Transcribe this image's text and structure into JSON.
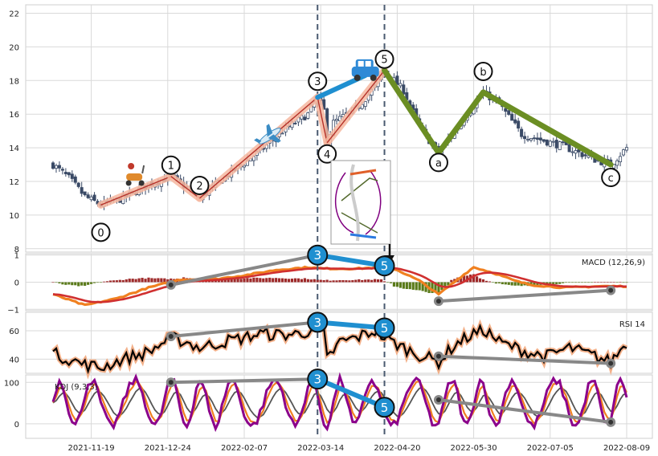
{
  "colors": {
    "candle": "#3a4a66",
    "wave_fill": "#f6b8a0",
    "wave_line": "#b5322a",
    "correction": "#6b8e23",
    "blue_segment": "#1f8fd0",
    "macd": "#f08020",
    "signal": "#d03030",
    "hist_pos": "#9e2a2a",
    "hist_neg": "#5a7a1a",
    "rsi": "#000000",
    "rsi_glow": "#f3b089",
    "k_line": "#f08020",
    "d_line": "#555555",
    "j_line": "#8b008b",
    "divergence": "#888888",
    "vline": "#4a5a70"
  },
  "icons": [
    "scooter-icon",
    "airplane-icon",
    "car-icon",
    "down-arrow-icon"
  ],
  "chart_data": [
    {
      "type": "candlestick",
      "panel": "price",
      "ylim": [
        7.8,
        22.5
      ],
      "yticks": [
        8,
        10,
        12,
        14,
        16,
        18,
        20,
        22
      ],
      "x_ticks": [
        "2021-11-19",
        "2021-12-24",
        "2022-02-07",
        "2022-03-14",
        "2022-04-20",
        "2022-05-30",
        "2022-07-05",
        "2022-08-09"
      ],
      "close_anchors": [
        [
          0,
          13.0
        ],
        [
          5,
          12.2
        ],
        [
          10,
          11.1
        ],
        [
          15,
          10.6
        ],
        [
          22,
          11.0
        ],
        [
          30,
          11.8
        ],
        [
          37,
          12.3
        ],
        [
          42,
          11.6
        ],
        [
          46,
          11.0
        ],
        [
          55,
          12.4
        ],
        [
          65,
          13.8
        ],
        [
          72,
          15.0
        ],
        [
          80,
          16.0
        ],
        [
          83,
          17.0
        ],
        [
          85,
          16.2
        ],
        [
          86,
          14.3
        ],
        [
          88,
          15.5
        ],
        [
          95,
          16.3
        ],
        [
          101,
          17.6
        ],
        [
          104,
          18.6
        ],
        [
          110,
          17.4
        ],
        [
          115,
          15.2
        ],
        [
          121,
          13.7
        ],
        [
          128,
          15.5
        ],
        [
          135,
          17.3
        ],
        [
          140,
          16.6
        ],
        [
          147,
          14.8
        ],
        [
          160,
          14.1
        ],
        [
          170,
          13.3
        ],
        [
          175,
          13.0
        ],
        [
          180,
          14.0
        ]
      ],
      "elliott_waves": [
        {
          "label": "0",
          "day": 15,
          "price": 10.6
        },
        {
          "label": "1",
          "day": 37,
          "price": 12.3
        },
        {
          "label": "2",
          "day": 46,
          "price": 11.0
        },
        {
          "label": "3",
          "day": 83,
          "price": 17.0
        },
        {
          "label": "4",
          "day": 86,
          "price": 14.3
        },
        {
          "label": "5",
          "day": 104,
          "price": 18.6
        },
        {
          "label": "a",
          "day": 121,
          "price": 13.7
        },
        {
          "label": "b",
          "day": 135,
          "price": 17.3
        },
        {
          "label": "c",
          "day": 175,
          "price": 13.0
        }
      ]
    },
    {
      "type": "line",
      "panel": "macd",
      "label": "MACD (12,26,9)",
      "ylim": [
        -1.05,
        1.05
      ],
      "yticks": [
        -1,
        0,
        1
      ],
      "macd_anchors": [
        [
          0,
          -0.45
        ],
        [
          10,
          -0.85
        ],
        [
          20,
          -0.6
        ],
        [
          30,
          -0.2
        ],
        [
          40,
          0.1
        ],
        [
          50,
          0.1
        ],
        [
          60,
          0.25
        ],
        [
          70,
          0.45
        ],
        [
          80,
          0.55
        ],
        [
          85,
          0.5
        ],
        [
          95,
          0.5
        ],
        [
          104,
          0.55
        ],
        [
          108,
          0.45
        ],
        [
          115,
          0.05
        ],
        [
          121,
          -0.45
        ],
        [
          128,
          0.2
        ],
        [
          132,
          0.55
        ],
        [
          138,
          0.35
        ],
        [
          145,
          0.05
        ],
        [
          150,
          -0.1
        ],
        [
          160,
          -0.2
        ],
        [
          172,
          -0.15
        ],
        [
          180,
          -0.15
        ]
      ],
      "divergence_points": [
        {
          "day": 37,
          "value": -0.1,
          "mark": "dot"
        },
        {
          "day": 83,
          "value": 1.0,
          "mark": "3"
        },
        {
          "day": 104,
          "value": 0.6,
          "mark": "5"
        },
        {
          "day": 121,
          "value": -0.7,
          "mark": "dot"
        },
        {
          "day": 175,
          "value": -0.3,
          "mark": "dot"
        }
      ]
    },
    {
      "type": "line",
      "panel": "rsi",
      "label": "RSI 14",
      "ylim": [
        30,
        73
      ],
      "yticks": [
        40,
        60
      ],
      "rsi_anchors": [
        [
          0,
          44
        ],
        [
          5,
          40
        ],
        [
          10,
          36
        ],
        [
          15,
          34
        ],
        [
          22,
          40
        ],
        [
          30,
          45
        ],
        [
          37,
          55
        ],
        [
          42,
          52
        ],
        [
          46,
          48
        ],
        [
          55,
          53
        ],
        [
          60,
          55
        ],
        [
          65,
          58
        ],
        [
          72,
          57
        ],
        [
          78,
          58
        ],
        [
          83,
          63
        ],
        [
          85,
          58
        ],
        [
          86,
          40
        ],
        [
          90,
          52
        ],
        [
          95,
          55
        ],
        [
          101,
          60
        ],
        [
          104,
          55
        ],
        [
          110,
          48
        ],
        [
          115,
          43
        ],
        [
          121,
          38
        ],
        [
          126,
          50
        ],
        [
          132,
          58
        ],
        [
          136,
          60
        ],
        [
          140,
          52
        ],
        [
          145,
          48
        ],
        [
          150,
          44
        ],
        [
          155,
          42
        ],
        [
          162,
          48
        ],
        [
          170,
          42
        ],
        [
          175,
          38
        ],
        [
          180,
          52
        ]
      ],
      "divergence_points": [
        {
          "day": 37,
          "value": 56,
          "mark": "dot"
        },
        {
          "day": 83,
          "value": 66,
          "mark": "3"
        },
        {
          "day": 104,
          "value": 62,
          "mark": "5"
        },
        {
          "day": 121,
          "value": 42,
          "mark": "dot"
        },
        {
          "day": 175,
          "value": 37,
          "mark": "dot"
        }
      ]
    },
    {
      "type": "line",
      "panel": "kdj",
      "label": "KDJ (9,3,3)",
      "ylim": [
        -35,
        118
      ],
      "yticks": [
        0,
        100
      ],
      "kdj_params": {
        "j_amp": 55,
        "j_period": 11,
        "k_factor": 0.55,
        "d_factor": 0.35
      },
      "divergence_points": [
        {
          "day": 37,
          "value": 100,
          "mark": "dot"
        },
        {
          "day": 83,
          "value": 108,
          "mark": "3"
        },
        {
          "day": 104,
          "value": 40,
          "mark": "5"
        },
        {
          "day": 121,
          "value": 58,
          "mark": "dot"
        },
        {
          "day": 175,
          "value": 4,
          "mark": "dot"
        }
      ]
    }
  ]
}
